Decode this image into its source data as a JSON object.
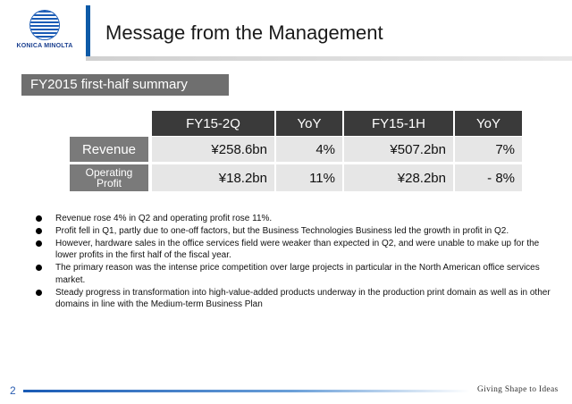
{
  "logo": {
    "text": "KONICA MINOLTA"
  },
  "title": "Message from the Management",
  "section_label": "FY2015 first-half summary",
  "table": {
    "headers": [
      "FY15-2Q",
      "YoY",
      "FY15-1H",
      "YoY"
    ],
    "rows": [
      {
        "label": "Revenue",
        "values": [
          "¥258.6bn",
          "4%",
          "¥507.2bn",
          "7%"
        ]
      },
      {
        "label_line1": "Operating",
        "label_line2": "Profit",
        "values": [
          "¥18.2bn",
          "11%",
          "¥28.2bn",
          "- 8%"
        ]
      }
    ]
  },
  "bullets": [
    "Revenue rose 4% in Q2 and operating profit rose 11%.",
    "Profit fell in Q1, partly due to one-off factors, but the Business Technologies Business led the growth in profit in Q2.",
    "However, hardware sales in the office services field were weaker than expected in Q2, and were unable to make up for the lower profits in the first half of the fiscal year.",
    "The primary reason was the intense price competition over large projects in particular in the North American office services market.",
    "Steady progress in transformation into high-value-added products underway in the production print domain as well as in other domains in line with the Medium-term Business Plan"
  ],
  "footer": {
    "page_number": "2",
    "tagline": "Giving Shape to Ideas"
  },
  "colors": {
    "brand_blue": "#0d5aa7",
    "header_dark": "#3a3a3a",
    "label_gray": "#7a7a7a",
    "cell_gray": "#e6e6e6"
  }
}
